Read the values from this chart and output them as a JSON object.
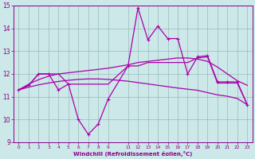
{
  "xlabel": "Windchill (Refroidissement éolien,°C)",
  "background_color": "#cce8e8",
  "line_color": "#aa00aa",
  "grid_color": "#99bbbb",
  "xlim": [
    -0.5,
    23.5
  ],
  "ylim": [
    9,
    15
  ],
  "yticks": [
    9,
    10,
    11,
    12,
    13,
    14,
    15
  ],
  "xticks": [
    0,
    1,
    2,
    3,
    4,
    5,
    6,
    7,
    8,
    9,
    11,
    12,
    13,
    14,
    15,
    16,
    17,
    18,
    19,
    20,
    21,
    22,
    23
  ],
  "xtick_labels": [
    "0",
    "1",
    "2",
    "3",
    "4",
    "5",
    "6",
    "7",
    "8",
    "9",
    "11",
    "12",
    "13",
    "14",
    "15",
    "16",
    "17",
    "18",
    "19",
    "20",
    "21",
    "22",
    "23"
  ],
  "line1_x": [
    0,
    1,
    2,
    3,
    4,
    5,
    6,
    7,
    8,
    9,
    11,
    12,
    13,
    14,
    15,
    16,
    17,
    18,
    19,
    20,
    21,
    22,
    23
  ],
  "line1_y": [
    11.3,
    11.5,
    12.0,
    12.0,
    11.3,
    11.55,
    10.0,
    9.35,
    9.8,
    10.9,
    12.35,
    14.9,
    13.5,
    14.1,
    13.55,
    13.55,
    12.0,
    12.75,
    12.8,
    11.65,
    11.65,
    11.65,
    10.65
  ],
  "line2_x": [
    0,
    1,
    2,
    3,
    4,
    5,
    6,
    7,
    8,
    9,
    11,
    12,
    13,
    14,
    15,
    16,
    17,
    18,
    19,
    20,
    21,
    22,
    23
  ],
  "line2_y": [
    11.3,
    11.5,
    12.0,
    12.0,
    12.0,
    11.55,
    11.55,
    11.55,
    11.55,
    11.55,
    12.35,
    12.35,
    12.5,
    12.5,
    12.5,
    12.5,
    12.5,
    12.7,
    12.75,
    11.6,
    11.6,
    11.6,
    10.65
  ],
  "line3_x": [
    0,
    1,
    2,
    3,
    4,
    5,
    6,
    7,
    8,
    9,
    11,
    12,
    13,
    14,
    15,
    16,
    17,
    18,
    19,
    20,
    21,
    22,
    23
  ],
  "line3_y": [
    11.3,
    11.55,
    11.75,
    11.9,
    12.0,
    12.05,
    12.1,
    12.15,
    12.2,
    12.25,
    12.4,
    12.5,
    12.55,
    12.6,
    12.65,
    12.7,
    12.7,
    12.65,
    12.55,
    12.3,
    12.0,
    11.7,
    11.5
  ],
  "line4_x": [
    0,
    1,
    2,
    3,
    4,
    5,
    6,
    7,
    8,
    9,
    11,
    12,
    13,
    14,
    15,
    16,
    17,
    18,
    19,
    20,
    21,
    22,
    23
  ],
  "line4_y": [
    11.3,
    11.42,
    11.52,
    11.6,
    11.67,
    11.72,
    11.76,
    11.78,
    11.78,
    11.76,
    11.68,
    11.62,
    11.56,
    11.5,
    11.44,
    11.38,
    11.33,
    11.28,
    11.18,
    11.08,
    11.02,
    10.92,
    10.65
  ]
}
